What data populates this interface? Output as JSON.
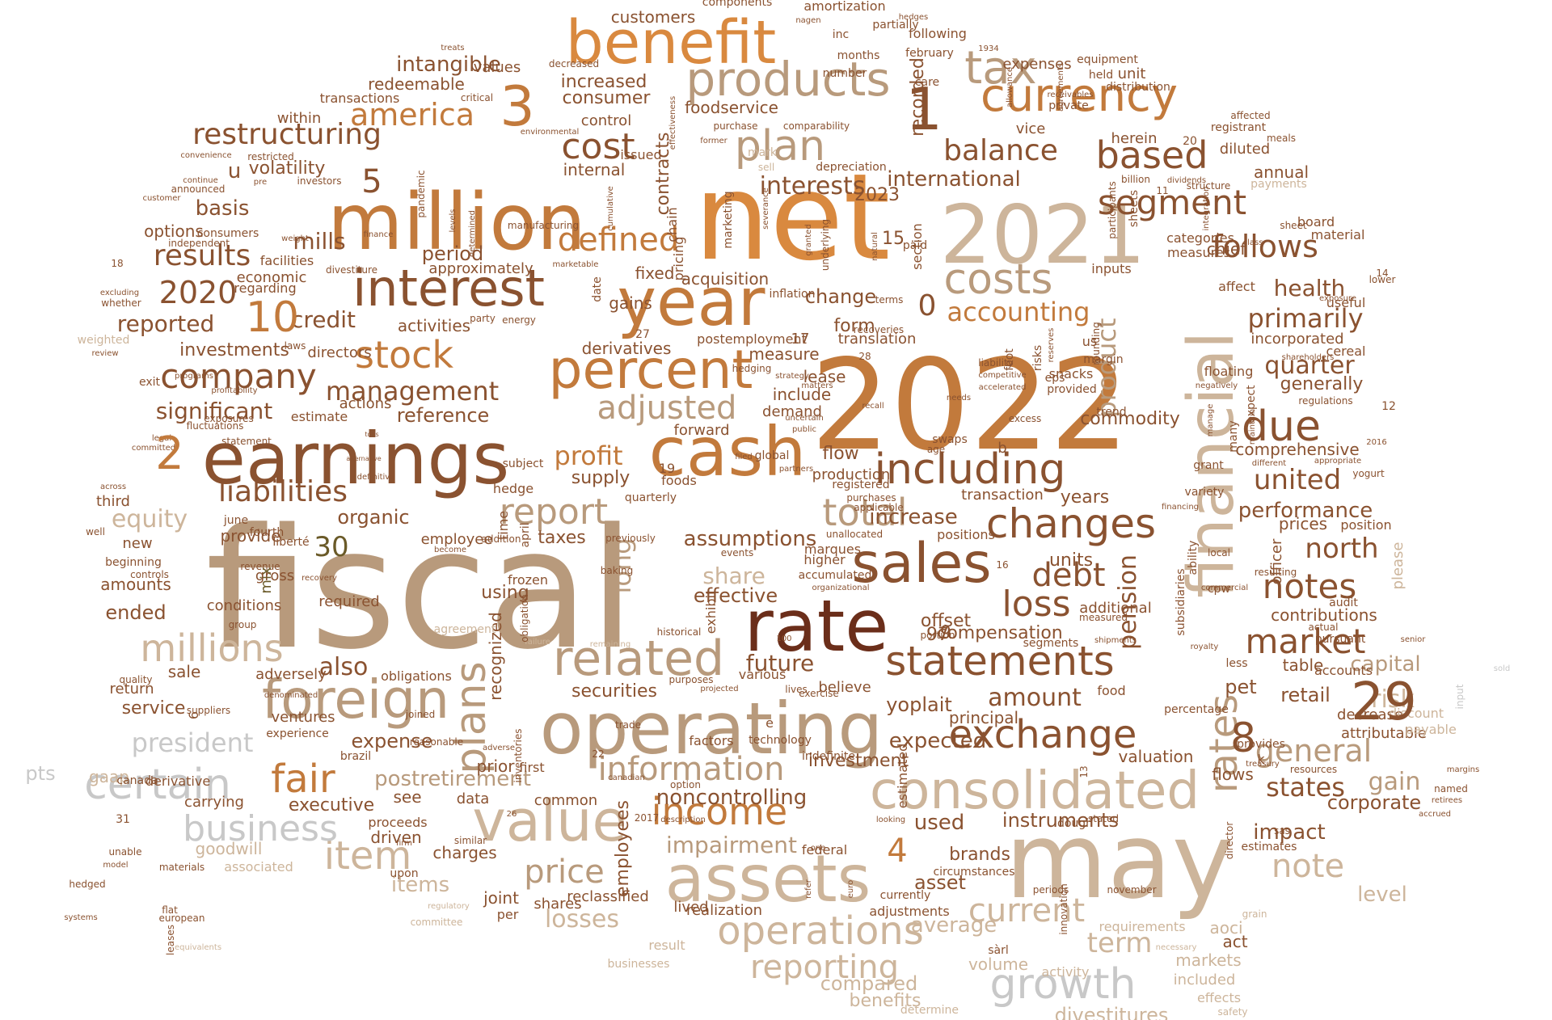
{
  "palette": {
    "dark_brown": "#6b2e1a",
    "brown": "#8a5230",
    "copper": "#c27a3c",
    "orange": "#d9893f",
    "tan": "#b89a7c",
    "light_tan": "#cdb59b",
    "gray": "#c8c8c8",
    "olive": "#6a5a28"
  },
  "words": [
    "fiscal",
    "2022",
    "net",
    "may",
    "operating",
    "million",
    "2021",
    "financial",
    "rate",
    "earnings",
    "assets",
    "cash",
    "year",
    "benefit",
    "value",
    "consolidated",
    "sales",
    "foreign",
    "interest",
    "percent",
    "related",
    "products",
    "currency",
    "including",
    "statements",
    "plans",
    "exchange",
    "changes",
    "operations",
    "growth",
    "certain",
    "due",
    "costs",
    "company",
    "total",
    "loss",
    "report",
    "information",
    "income",
    "fair",
    "tax",
    "stock",
    "item",
    "rates",
    "plan",
    "based",
    "millions",
    "segment",
    "market",
    "notes",
    "general",
    "price",
    "reporting",
    "cost",
    "defined",
    "current",
    "adjusted",
    "liabilities",
    "restructuring",
    "america",
    "follows",
    "balance",
    "results",
    "debt",
    "management",
    "business",
    "accounting",
    "term",
    "primarily",
    "united",
    "pension",
    "product",
    "interests",
    "president",
    "states",
    "impairment",
    "quarter",
    "significant",
    "profit",
    "credit",
    "noncontrolling",
    "international",
    "losses",
    "performance",
    "north",
    "note",
    "increase",
    "long",
    "mills",
    "investments",
    "reported",
    "intangible",
    "assumptions",
    "health",
    "consumer",
    "increased",
    "customers",
    "share",
    "future",
    "investment",
    "amount",
    "expected",
    "compensation",
    "equity",
    "executive",
    "postretirement",
    "expense",
    "items",
    "employees",
    "capital",
    "gain",
    "risk",
    "level",
    "corporate",
    "impact",
    "average",
    "compared",
    "benefits",
    "divestitures",
    "used",
    "asset",
    "brands",
    "instruments",
    "securities",
    "also",
    "retail",
    "pet",
    "yoplait",
    "principal",
    "valuation",
    "flows",
    "fixed",
    "gains",
    "acquisition",
    "derivatives",
    "activities",
    "directors",
    "reference",
    "supply",
    "effective",
    "organic",
    "years",
    "commodity",
    "change",
    "form",
    "lease",
    "include",
    "demand",
    "measure",
    "forward",
    "flow",
    "production",
    "recorded",
    "contracts",
    "basis",
    "volatility",
    "period",
    "approximately",
    "options",
    "economic",
    "facilities",
    "within",
    "transactions",
    "redeemable",
    "values",
    "control",
    "internal",
    "foodservice",
    "amortization",
    "components",
    "inc",
    "number",
    "months",
    "following",
    "expenses",
    "held",
    "equipment",
    "distribution",
    "unit",
    "herein",
    "vice",
    "care",
    "february",
    "chief",
    "incorporated",
    "generally",
    "comprehensive",
    "officer",
    "prices",
    "position",
    "contributions",
    "table",
    "accounts",
    "attributable",
    "decrease",
    "payable",
    "discount",
    "input",
    "sold",
    "annual",
    "payments",
    "board",
    "material",
    "categories",
    "measures",
    "inputs",
    "affect",
    "useful",
    "cereal",
    "shareholders",
    "restricted",
    "pandemic",
    "consumers",
    "independent",
    "regarding",
    "ended",
    "new",
    "third",
    "june",
    "fourth",
    "provide",
    "revenue",
    "gross",
    "mix",
    "amounts",
    "conditions",
    "required",
    "group",
    "sale",
    "return",
    "service",
    "adversely",
    "obligations",
    "ventures",
    "derivative",
    "experience",
    "carrying",
    "goodwill",
    "gaap",
    "canada",
    "pts",
    "see",
    "data",
    "proceeds",
    "driven",
    "common",
    "prior",
    "first",
    "charges",
    "similar",
    "joint",
    "shares",
    "per",
    "reclassified",
    "result",
    "lived",
    "realization",
    "businesses",
    "volume",
    "activity",
    "markets",
    "included",
    "effects",
    "requirements",
    "aoci",
    "act",
    "employee",
    "frozen",
    "using",
    "taxes",
    "previously",
    "quarterly",
    "foods",
    "hedge",
    "subject",
    "actions",
    "estimate",
    "fluctuations",
    "statement",
    "legal",
    "cpw",
    "subsidiaries",
    "additional",
    "units",
    "offset",
    "portion",
    "measured",
    "shipments",
    "segments",
    "food",
    "percentage",
    "royalty",
    "less",
    "pursuant",
    "actual",
    "audit",
    "resulting",
    "please",
    "ability",
    "commercial",
    "local",
    "recognized",
    "time",
    "april",
    "mark",
    "sell",
    "issued",
    "chain",
    "pricing",
    "marketing",
    "inflation",
    "translation",
    "postemployment",
    "hedging",
    "uncertain",
    "public",
    "age",
    "swaps",
    "transaction",
    "registered",
    "unallocated",
    "positions",
    "accumulated",
    "organizational",
    "historical",
    "various",
    "believe",
    "lives",
    "projected",
    "technology",
    "indefinite",
    "factors",
    "estimated",
    "recall",
    "eps",
    "provided",
    "snacks",
    "trend",
    "margin",
    "floating",
    "expect",
    "many",
    "manage",
    "grant",
    "variety",
    "financing",
    "yogurt",
    "different",
    "appropriate",
    "regulations",
    "lower",
    "exposure",
    "sheet",
    "class",
    "participants",
    "sheets",
    "integration",
    "structure",
    "dividends",
    "billion",
    "diluted",
    "meals",
    "registrant",
    "affected",
    "private",
    "receivables",
    "agreements",
    "allowance",
    "partially",
    "hedges",
    "depreciation",
    "comparability",
    "terms",
    "paid",
    "section",
    "date",
    "cumulative",
    "determined",
    "levels",
    "finance",
    "weighted",
    "review",
    "programs",
    "exit",
    "profitability",
    "excluding",
    "whether",
    "across",
    "committed",
    "definitive",
    "convenience",
    "continue",
    "announced",
    "customer",
    "investors",
    "weight",
    "divestiture",
    "marketable",
    "energy",
    "party",
    "laws",
    "unable",
    "model",
    "materials",
    "hedged",
    "systems",
    "flat",
    "european",
    "leases",
    "equivalents",
    "associated",
    "regulatory",
    "upon",
    "committee",
    "adverse",
    "inventories",
    "purposes",
    "trade",
    "option",
    "description",
    "filed",
    "global",
    "partners",
    "events",
    "exhibit",
    "higher",
    "exercise",
    "looking",
    "federal",
    "dough",
    "stated",
    "firm",
    "circumstances",
    "currently",
    "adjustments",
    "november",
    "periods",
    "innovation",
    "director",
    "safety",
    "necessary",
    "grain",
    "ingredients",
    "determine",
    "recoveries",
    "purchases",
    "applicable",
    "liberté",
    "marques",
    "baking",
    "recovery",
    "controls",
    "beginning",
    "become",
    "addition",
    "critical",
    "treats",
    "decreased",
    "nagen",
    "manufacturing",
    "environmental",
    "effectiveness",
    "former",
    "purchase",
    "severance",
    "granted",
    "underlying",
    "strategy",
    "natural",
    "competitive",
    "accelerated",
    "needs",
    "excess",
    "liability",
    "matters",
    "foot",
    "risks",
    "reserves",
    "rounding",
    "negatively",
    "maintain",
    "exposures",
    "denominated",
    "suppliers",
    "quality",
    "joined",
    "brazil",
    "reasonable",
    "agreement",
    "failure",
    "remaining",
    "obligation",
    "canadian",
    "senior",
    "resources",
    "margins",
    "retirees",
    "accrued",
    "treasury",
    "estimates",
    "sas",
    "provides",
    "named",
    "sàrl",
    "euro",
    "refer",
    "one",
    "well",
    "pre",
    "tons",
    "alternative",
    "us",
    "b",
    "k",
    "e",
    "u",
    "3",
    "1",
    "5",
    "10",
    "2",
    "2020",
    "0",
    "15",
    "2023",
    "11",
    "20",
    "12",
    "14",
    "17",
    "18",
    "19",
    "27",
    "28",
    "13",
    "16",
    "22",
    "26",
    "31",
    "100",
    "2016",
    "2017",
    "1934",
    "4",
    "6",
    "8",
    "9",
    "29",
    "30",
    "97"
  ]
}
